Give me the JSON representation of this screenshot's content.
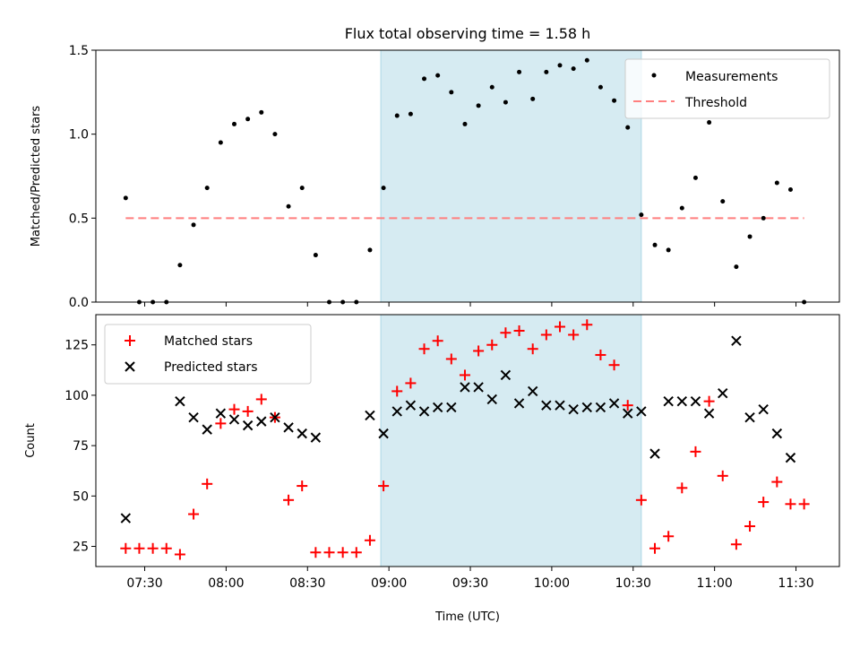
{
  "title": "Flux total observing time = 1.58 h",
  "colors": {
    "measurement": "#000000",
    "threshold": "#ff7f7f",
    "matched": "#ff0000",
    "predicted": "#000000",
    "shade": "#add8e6"
  },
  "chart_data": [
    {
      "type": "scatter",
      "ylabel": "Matched/Predicted stars",
      "ylim": [
        0,
        1.5
      ],
      "yticks": [
        0,
        0.5,
        1.0,
        1.5
      ],
      "ytick_labels": [
        "0.0",
        "0.5",
        "1.0",
        "1.5"
      ],
      "xlim": [
        "07:12",
        "11:46"
      ],
      "shaded_span": [
        "08:57",
        "10:33"
      ],
      "legend": {
        "placement": "upper right",
        "entries": [
          "Measurements",
          "Threshold"
        ]
      },
      "threshold": {
        "name": "Threshold",
        "value": 0.5,
        "x_range": [
          "07:23",
          "11:33"
        ]
      },
      "series": [
        {
          "name": "Measurements",
          "x": [
            "07:23",
            "07:28",
            "07:33",
            "07:38",
            "07:43",
            "07:48",
            "07:53",
            "07:58",
            "08:03",
            "08:08",
            "08:13",
            "08:18",
            "08:23",
            "08:28",
            "08:33",
            "08:38",
            "08:43",
            "08:48",
            "08:53",
            "08:58",
            "09:03",
            "09:08",
            "09:13",
            "09:18",
            "09:23",
            "09:28",
            "09:33",
            "09:38",
            "09:43",
            "09:48",
            "09:53",
            "09:58",
            "10:03",
            "10:08",
            "10:13",
            "10:18",
            "10:23",
            "10:28",
            "10:33",
            "10:38",
            "10:43",
            "10:48",
            "10:53",
            "10:58",
            "11:03",
            "11:08",
            "11:13",
            "11:18",
            "11:23",
            "11:28",
            "11:33"
          ],
          "y": [
            0.62,
            0.0,
            0.0,
            0.0,
            0.22,
            0.46,
            0.68,
            0.95,
            1.06,
            1.09,
            1.13,
            1.0,
            0.57,
            0.68,
            0.28,
            0.0,
            0.0,
            0.0,
            0.31,
            0.68,
            1.11,
            1.12,
            1.33,
            1.35,
            1.25,
            1.06,
            1.17,
            1.28,
            1.19,
            1.37,
            1.21,
            1.37,
            1.41,
            1.39,
            1.44,
            1.28,
            1.2,
            1.04,
            0.52,
            0.34,
            0.31,
            0.56,
            0.74,
            1.07,
            0.6,
            0.21,
            0.39,
            0.5,
            0.71,
            0.67,
            0.0
          ]
        }
      ]
    },
    {
      "type": "scatter",
      "xlabel": "Time (UTC)",
      "ylabel": "Count",
      "ylim": [
        15,
        140
      ],
      "yticks": [
        25,
        50,
        75,
        100,
        125
      ],
      "ytick_labels": [
        "25",
        "50",
        "75",
        "100",
        "125"
      ],
      "xlim": [
        "07:12",
        "11:46"
      ],
      "xticks": [
        "07:30",
        "08:00",
        "08:30",
        "09:00",
        "09:30",
        "10:00",
        "10:30",
        "11:00",
        "11:30"
      ],
      "shaded_span": [
        "08:57",
        "10:33"
      ],
      "legend": {
        "placement": "upper left",
        "entries": [
          "Matched stars",
          "Predicted stars"
        ]
      },
      "series": [
        {
          "name": "Matched stars",
          "x": [
            "07:23",
            "07:28",
            "07:33",
            "07:38",
            "07:43",
            "07:48",
            "07:53",
            "07:58",
            "08:03",
            "08:08",
            "08:13",
            "08:18",
            "08:23",
            "08:28",
            "08:33",
            "08:38",
            "08:43",
            "08:48",
            "08:53",
            "08:58",
            "09:03",
            "09:08",
            "09:13",
            "09:18",
            "09:23",
            "09:28",
            "09:33",
            "09:38",
            "09:43",
            "09:48",
            "09:53",
            "09:58",
            "10:03",
            "10:08",
            "10:13",
            "10:18",
            "10:23",
            "10:28",
            "10:33",
            "10:38",
            "10:43",
            "10:48",
            "10:53",
            "10:58",
            "11:03",
            "11:08",
            "11:13",
            "11:18",
            "11:23",
            "11:28",
            "11:33"
          ],
          "y": [
            24,
            24,
            24,
            24,
            21,
            41,
            56,
            86,
            93,
            92,
            98,
            89,
            48,
            55,
            22,
            22,
            22,
            22,
            28,
            55,
            102,
            106,
            123,
            127,
            118,
            110,
            122,
            125,
            131,
            132,
            123,
            130,
            134,
            130,
            135,
            120,
            115,
            95,
            48,
            24,
            30,
            54,
            72,
            97,
            60,
            26,
            35,
            47,
            57,
            46,
            46
          ]
        },
        {
          "name": "Predicted stars",
          "x": [
            "07:23",
            "07:43",
            "07:48",
            "07:53",
            "07:58",
            "08:03",
            "08:08",
            "08:13",
            "08:18",
            "08:23",
            "08:28",
            "08:33",
            "08:53",
            "08:58",
            "09:03",
            "09:08",
            "09:13",
            "09:18",
            "09:23",
            "09:28",
            "09:33",
            "09:38",
            "09:43",
            "09:48",
            "09:53",
            "09:58",
            "10:03",
            "10:08",
            "10:13",
            "10:18",
            "10:23",
            "10:28",
            "10:33",
            "10:38",
            "10:43",
            "10:48",
            "10:53",
            "10:58",
            "11:03",
            "11:08",
            "11:13",
            "11:18",
            "11:23",
            "11:28"
          ],
          "y": [
            39,
            97,
            89,
            83,
            91,
            88,
            85,
            87,
            89,
            84,
            81,
            79,
            90,
            81,
            92,
            95,
            92,
            94,
            94,
            104,
            104,
            98,
            110,
            96,
            102,
            95,
            95,
            93,
            94,
            94,
            96,
            91,
            92,
            71,
            97,
            97,
            97,
            91,
            101,
            127,
            89,
            93,
            81,
            69
          ]
        }
      ]
    }
  ]
}
